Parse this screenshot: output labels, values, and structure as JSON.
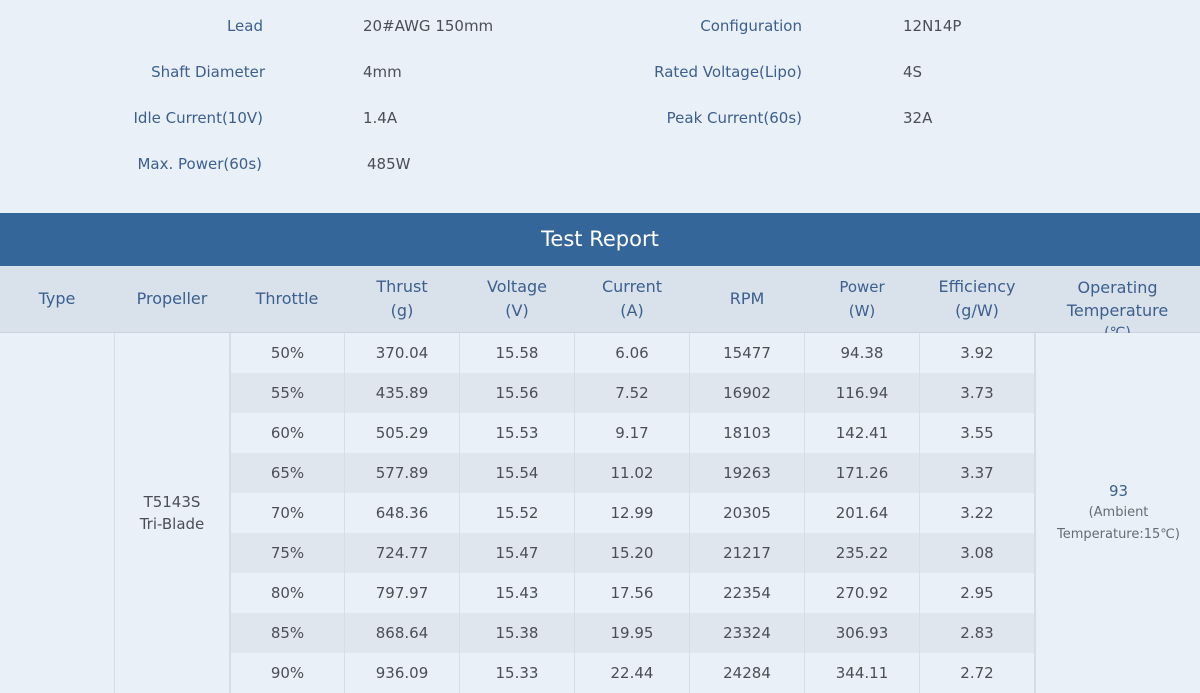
{
  "specs": {
    "lead_label": "Lead",
    "lead_value": "20#AWG 150mm",
    "config_label": "Configuration",
    "config_value": "12N14P",
    "shaft_label": "Shaft Diameter",
    "shaft_value": "4mm",
    "rated_voltage_label": "Rated Voltage(Lipo)",
    "rated_voltage_value": "4S",
    "idle_label": "Idle Current(10V)",
    "idle_value": "1.4A",
    "peak_label": "Peak Current(60s)",
    "peak_value": "32A",
    "max_power_label": "Max. Power(60s)",
    "max_power_value": "485W"
  },
  "report": {
    "title": "Test Report",
    "headers": {
      "type": "Type",
      "propeller": "Propeller",
      "throttle": "Throttle",
      "thrust_1": "Thrust",
      "thrust_2": "(g)",
      "voltage_1": "Voltage",
      "voltage_2": "(V)",
      "current_1": "Current",
      "current_2": "(A)",
      "rpm": "RPM",
      "power_1": "Power",
      "power_2": "(W)",
      "efficiency_1": "Efficiency",
      "efficiency_2": "(g/W)",
      "temp_1": "Operating",
      "temp_2": "Temperature",
      "temp_3": "(℃)"
    },
    "propeller_line1": "T5143S",
    "propeller_line2": "Tri-Blade",
    "temp_value": "93",
    "temp_note_1": "(Ambient",
    "temp_note_2": "Temperature:15℃)",
    "rows": [
      {
        "throttle": "50%",
        "thrust": "370.04",
        "voltage": "15.58",
        "current": "6.06",
        "rpm": "15477",
        "power": "94.38",
        "efficiency": "3.92"
      },
      {
        "throttle": "55%",
        "thrust": "435.89",
        "voltage": "15.56",
        "current": "7.52",
        "rpm": "16902",
        "power": "116.94",
        "efficiency": "3.73"
      },
      {
        "throttle": "60%",
        "thrust": "505.29",
        "voltage": "15.53",
        "current": "9.17",
        "rpm": "18103",
        "power": "142.41",
        "efficiency": "3.55"
      },
      {
        "throttle": "65%",
        "thrust": "577.89",
        "voltage": "15.54",
        "current": "11.02",
        "rpm": "19263",
        "power": "171.26",
        "efficiency": "3.37"
      },
      {
        "throttle": "70%",
        "thrust": "648.36",
        "voltage": "15.52",
        "current": "12.99",
        "rpm": "20305",
        "power": "201.64",
        "efficiency": "3.22"
      },
      {
        "throttle": "75%",
        "thrust": "724.77",
        "voltage": "15.47",
        "current": "15.20",
        "rpm": "21217",
        "power": "235.22",
        "efficiency": "3.08"
      },
      {
        "throttle": "80%",
        "thrust": "797.97",
        "voltage": "15.43",
        "current": "17.56",
        "rpm": "22354",
        "power": "270.92",
        "efficiency": "2.95"
      },
      {
        "throttle": "85%",
        "thrust": "868.64",
        "voltage": "15.38",
        "current": "19.95",
        "rpm": "23324",
        "power": "306.93",
        "efficiency": "2.83"
      },
      {
        "throttle": "90%",
        "thrust": "936.09",
        "voltage": "15.33",
        "current": "22.44",
        "rpm": "24284",
        "power": "344.11",
        "efficiency": "2.72"
      }
    ]
  }
}
